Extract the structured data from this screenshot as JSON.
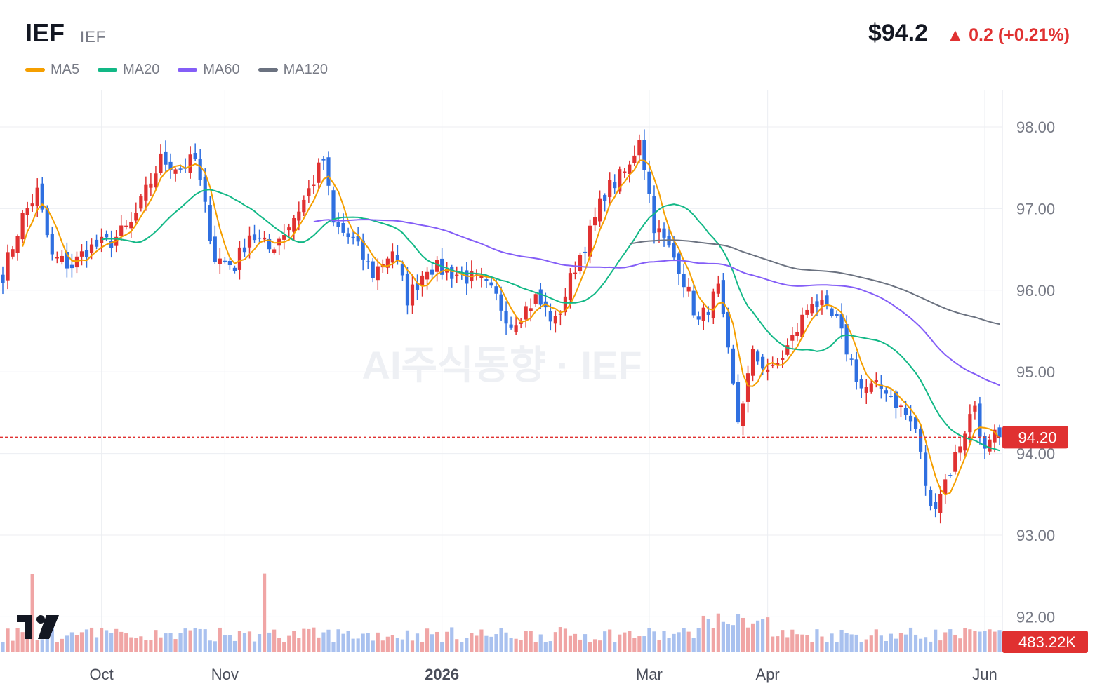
{
  "header": {
    "symbol": "IEF",
    "subtitle": "IEF",
    "price": "$94.2",
    "change": "▲ 0.2 (+0.21%)"
  },
  "legend": [
    {
      "label": "MA5",
      "color": "#f59f00"
    },
    {
      "label": "MA20",
      "color": "#12b886"
    },
    {
      "label": "MA60",
      "color": "#845ef7"
    },
    {
      "label": "MA120",
      "color": "#6b7280"
    }
  ],
  "watermark": "AI주식동향 · IEF",
  "colors": {
    "up": "#e03131",
    "down": "#2f6fe0",
    "up_vol": "#f0a5a5",
    "down_vol": "#a9c1ef",
    "grid": "#eceef2"
  },
  "chart_data": {
    "type": "candlestick",
    "ylim": [
      91.8,
      98.45
    ],
    "y_ticks": [
      "98.00",
      "97.00",
      "96.00",
      "95.00",
      "94.00",
      "93.00",
      "92.00"
    ],
    "x_ticks": [
      {
        "label": "Oct",
        "day": 20
      },
      {
        "label": "Nov",
        "day": 45
      },
      {
        "label": "2026",
        "day": 89,
        "bold": true
      },
      {
        "label": "Mar",
        "day": 131
      },
      {
        "label": "Apr",
        "day": 155
      },
      {
        "label": "Jun",
        "day": 199
      }
    ],
    "n_days": 203,
    "last_price": 94.2,
    "last_price_label": "94.20",
    "volume_label": "483.22K",
    "anchors": [
      [
        0,
        96.2
      ],
      [
        4,
        96.9
      ],
      [
        7,
        97.2
      ],
      [
        10,
        96.4
      ],
      [
        14,
        96.3
      ],
      [
        17,
        96.5
      ],
      [
        22,
        96.6
      ],
      [
        26,
        96.8
      ],
      [
        32,
        97.6
      ],
      [
        36,
        97.5
      ],
      [
        39,
        97.6
      ],
      [
        43,
        96.4
      ],
      [
        47,
        96.3
      ],
      [
        50,
        96.7
      ],
      [
        54,
        96.5
      ],
      [
        58,
        96.8
      ],
      [
        61,
        97.1
      ],
      [
        65,
        97.6
      ],
      [
        67,
        96.8
      ],
      [
        71,
        96.6
      ],
      [
        75,
        96.2
      ],
      [
        79,
        96.5
      ],
      [
        82,
        95.9
      ],
      [
        86,
        96.3
      ],
      [
        92,
        96.2
      ],
      [
        97,
        96.1
      ],
      [
        100,
        95.9
      ],
      [
        103,
        95.6
      ],
      [
        108,
        95.9
      ],
      [
        112,
        95.6
      ],
      [
        116,
        96.3
      ],
      [
        119,
        96.7
      ],
      [
        122,
        97.2
      ],
      [
        127,
        97.5
      ],
      [
        129,
        97.9
      ],
      [
        132,
        96.8
      ],
      [
        137,
        96.3
      ],
      [
        141,
        95.6
      ],
      [
        145,
        96.0
      ],
      [
        149,
        94.4
      ],
      [
        152,
        95.2
      ],
      [
        156,
        95.0
      ],
      [
        160,
        95.4
      ],
      [
        164,
        95.9
      ],
      [
        169,
        95.6
      ],
      [
        174,
        94.8
      ],
      [
        179,
        94.8
      ],
      [
        185,
        94.3
      ],
      [
        188,
        93.3
      ],
      [
        192,
        93.8
      ],
      [
        195,
        94.3
      ],
      [
        197,
        94.6
      ],
      [
        199,
        94.0
      ],
      [
        201,
        94.2
      ]
    ],
    "ma_series": [
      {
        "name": "MA5",
        "window": 5,
        "color": "#f59f00",
        "start": 4
      },
      {
        "name": "MA20",
        "window": 20,
        "color": "#12b886",
        "start": 20
      },
      {
        "name": "MA60",
        "window": 60,
        "color": "#845ef7",
        "start": 63
      },
      {
        "name": "MA120",
        "window": 120,
        "color": "#6b7280",
        "start": 127
      }
    ]
  }
}
